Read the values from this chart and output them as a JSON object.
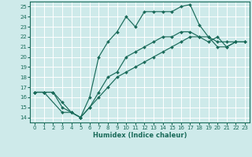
{
  "xlabel": "Humidex (Indice chaleur)",
  "bg_color": "#ceeaea",
  "grid_color": "#ffffff",
  "line_color": "#1a6b5a",
  "xlim": [
    -0.5,
    23.5
  ],
  "ylim": [
    13.5,
    25.5
  ],
  "yticks": [
    14,
    15,
    16,
    17,
    18,
    19,
    20,
    21,
    22,
    23,
    24,
    25
  ],
  "xticks": [
    0,
    1,
    2,
    3,
    4,
    5,
    6,
    7,
    8,
    9,
    10,
    11,
    12,
    13,
    14,
    15,
    16,
    17,
    18,
    19,
    20,
    21,
    22,
    23
  ],
  "line1_x": [
    0,
    1,
    3,
    4,
    5,
    6,
    7,
    8,
    9,
    10,
    11,
    12,
    13,
    14,
    15,
    16,
    17,
    18,
    19,
    20,
    21,
    22
  ],
  "line1_y": [
    16.5,
    16.5,
    14.5,
    14.5,
    14.0,
    16.0,
    20.0,
    21.5,
    22.5,
    24.0,
    23.0,
    24.5,
    24.5,
    24.5,
    24.5,
    25.0,
    25.2,
    23.2,
    22.0,
    21.0,
    21.0,
    21.5
  ],
  "line2_x": [
    0,
    1,
    2,
    3,
    4,
    5,
    6,
    7,
    8,
    9,
    10,
    11,
    12,
    13,
    14,
    15,
    16,
    17,
    18,
    19,
    20,
    21,
    22,
    23
  ],
  "line2_y": [
    16.5,
    16.5,
    16.5,
    15.0,
    14.5,
    14.0,
    15.0,
    16.0,
    17.0,
    18.0,
    18.5,
    19.0,
    19.5,
    20.0,
    20.5,
    21.0,
    21.5,
    22.0,
    22.0,
    22.0,
    21.5,
    21.5,
    21.5,
    21.5
  ],
  "line3_x": [
    0,
    1,
    2,
    3,
    4,
    5,
    6,
    7,
    8,
    9,
    10,
    11,
    12,
    13,
    14,
    15,
    16,
    17,
    18,
    19,
    20,
    21,
    22,
    23
  ],
  "line3_y": [
    16.5,
    16.5,
    16.5,
    15.5,
    14.5,
    14.0,
    15.0,
    16.5,
    18.0,
    18.5,
    20.0,
    20.5,
    21.0,
    21.5,
    22.0,
    22.0,
    22.5,
    22.5,
    22.0,
    21.5,
    22.0,
    21.0,
    21.5,
    21.5
  ],
  "marker_size": 2.0,
  "linewidth": 0.85,
  "tick_fontsize": 5.0,
  "xlabel_fontsize": 6.0
}
